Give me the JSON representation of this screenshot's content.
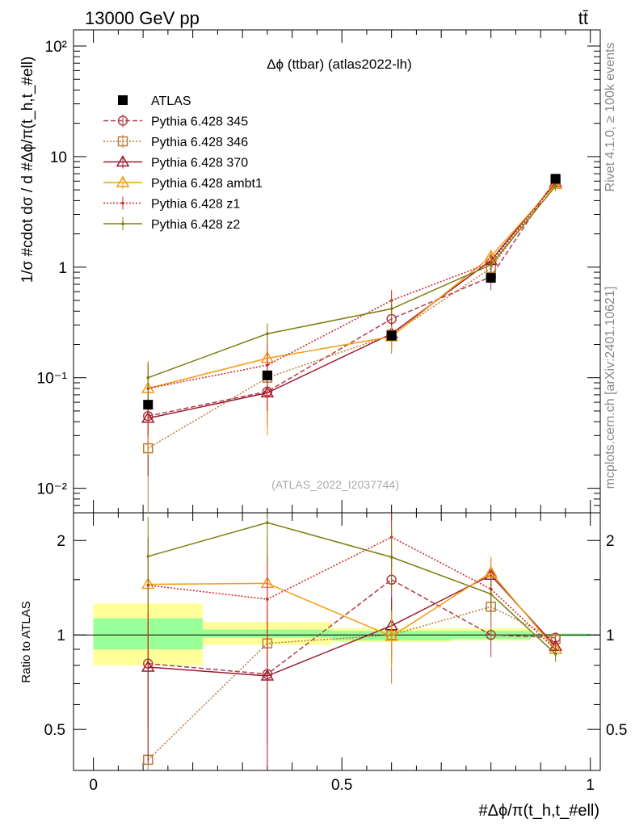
{
  "header": {
    "energy_label": "13000 GeV pp",
    "process_label": "tt̄"
  },
  "side_labels": {
    "rivet": "Rivet 4.1.0, ≥ 100k events",
    "mcplots": "mcplots.cern.ch [arXiv:2401.10621]"
  },
  "main_plot": {
    "title": "Δϕ (ttbar) (atlas2022-lh)",
    "ylabel": "1/σ #cdot dσ / d #Δϕ/π(t_h,t_#ell)",
    "watermark": "(ATLAS_2022_I2037744)",
    "yticks": [
      "10⁻²",
      "10⁻¹",
      "1",
      "10",
      "10²"
    ]
  },
  "ratio_plot": {
    "ylabel": "Ratio to ATLAS",
    "yticks": [
      "0.5",
      "1",
      "2"
    ]
  },
  "xaxis": {
    "label": "#Δϕ/π(t_h,t_#ell)",
    "ticks": [
      "0",
      "0.5",
      "1"
    ]
  },
  "legend": [
    {
      "label": "ATLAS",
      "color": "#000000",
      "marker": "square-filled",
      "dash": "none"
    },
    {
      "label": "Pythia 6.428 345",
      "color": "#b03a48",
      "marker": "circle-open",
      "dash": "6,3"
    },
    {
      "label": "Pythia 6.428 346",
      "color": "#b87a3a",
      "marker": "square-open",
      "dash": "2,2"
    },
    {
      "label": "Pythia 6.428 370",
      "color": "#9b1b30",
      "marker": "triangle-open",
      "dash": "none"
    },
    {
      "label": "Pythia 6.428 ambt1",
      "color": "#f39c12",
      "marker": "triangle-open",
      "dash": "none"
    },
    {
      "label": "Pythia 6.428 z1",
      "color": "#cc2222",
      "marker": "dot",
      "dash": "2,2"
    },
    {
      "label": "Pythia 6.428 z2",
      "color": "#7d7d0f",
      "marker": "dot",
      "dash": "none"
    }
  ],
  "chart_data": {
    "type": "line",
    "title": "Δϕ (ttbar) (atlas2022-lh)",
    "xlabel": "#Δϕ/π(t_h,t_#ell)",
    "ylabel": "1/σ #cdot dσ / d #Δϕ/π(t_h,t_#ell)",
    "ratio_ylabel": "Ratio to ATLAS",
    "xlim": [
      -0.04,
      1.02
    ],
    "ylim_log": [
      0.006,
      140
    ],
    "ratio_ylim": [
      0.37,
      2.45
    ],
    "x": [
      0.11,
      0.35,
      0.6,
      0.8,
      0.93
    ],
    "data": {
      "name": "ATLAS",
      "values": [
        0.057,
        0.105,
        0.24,
        0.8,
        6.3
      ],
      "x_bins": [
        [
          0.0,
          0.22
        ],
        [
          0.22,
          0.48
        ],
        [
          0.48,
          0.72
        ],
        [
          0.72,
          0.88
        ],
        [
          0.88,
          1.0
        ]
      ],
      "band_inner": [
        [
          0.9,
          1.13
        ],
        [
          0.98,
          1.04
        ],
        [
          0.96,
          1.03
        ],
        [
          0.97,
          1.03
        ],
        [
          0.99,
          1.01
        ]
      ],
      "band_outer": [
        [
          0.8,
          1.26
        ],
        [
          0.93,
          1.1
        ],
        [
          0.95,
          1.05
        ],
        [
          0.96,
          1.05
        ],
        [
          0.99,
          1.01
        ]
      ]
    },
    "series": [
      {
        "name": "Pythia 6.428 345",
        "values": [
          0.045,
          0.075,
          0.34,
          0.82,
          6.2
        ],
        "errors": [
          0.02,
          0.04,
          0.12,
          0.2,
          0.5
        ]
      },
      {
        "name": "Pythia 6.428 346",
        "values": [
          0.023,
          0.1,
          0.245,
          0.98,
          6.1
        ],
        "errors": [
          0.02,
          0.05,
          0.08,
          0.2,
          0.5
        ]
      },
      {
        "name": "Pythia 6.428 370",
        "values": [
          0.043,
          0.073,
          0.25,
          1.15,
          5.8
        ],
        "errors": [
          0.03,
          0.036,
          0.07,
          0.2,
          0.5
        ]
      },
      {
        "name": "Pythia 6.428 ambt1",
        "values": [
          0.08,
          0.15,
          0.235,
          1.25,
          5.6
        ],
        "errors": [
          0.06,
          0.12,
          0.06,
          0.2,
          0.5
        ]
      },
      {
        "name": "Pythia 6.428 z1",
        "values": [
          0.08,
          0.13,
          0.5,
          1.1,
          5.8
        ],
        "errors": [
          0.05,
          0.08,
          0.12,
          0.2,
          0.5
        ]
      },
      {
        "name": "Pythia 6.428 z2",
        "values": [
          0.1,
          0.25,
          0.42,
          1.05,
          5.4
        ],
        "errors": [
          0.04,
          0.06,
          0.1,
          0.2,
          0.5
        ]
      }
    ],
    "ratios": [
      {
        "name": "Pythia 6.428 345",
        "values": [
          0.81,
          0.75,
          1.5,
          1.0,
          0.98
        ],
        "errors": [
          0.3,
          0.3,
          0.3,
          0.15,
          0.04
        ]
      },
      {
        "name": "Pythia 6.428 346",
        "values": [
          0.4,
          0.94,
          1.0,
          1.23,
          0.97
        ],
        "errors": [
          0.4,
          0.4,
          0.3,
          0.25,
          0.05
        ]
      },
      {
        "name": "Pythia 6.428 370",
        "values": [
          0.79,
          0.74,
          1.07,
          1.55,
          0.92
        ],
        "errors": [
          0.4,
          0.45,
          0.25,
          0.2,
          0.05
        ]
      },
      {
        "name": "Pythia 6.428 ambt1",
        "values": [
          1.45,
          1.46,
          0.99,
          1.58,
          0.9
        ],
        "errors": [
          0.6,
          0.6,
          0.2,
          0.2,
          0.05
        ]
      },
      {
        "name": "Pythia 6.428 z1",
        "values": [
          1.44,
          1.3,
          2.05,
          1.4,
          0.9
        ],
        "errors": [
          0.6,
          0.5,
          0.4,
          0.2,
          0.05
        ]
      },
      {
        "name": "Pythia 6.428 z2",
        "values": [
          1.78,
          2.28,
          1.77,
          1.35,
          0.87
        ],
        "errors": [
          0.6,
          0.6,
          0.4,
          0.2,
          0.05
        ]
      }
    ]
  }
}
